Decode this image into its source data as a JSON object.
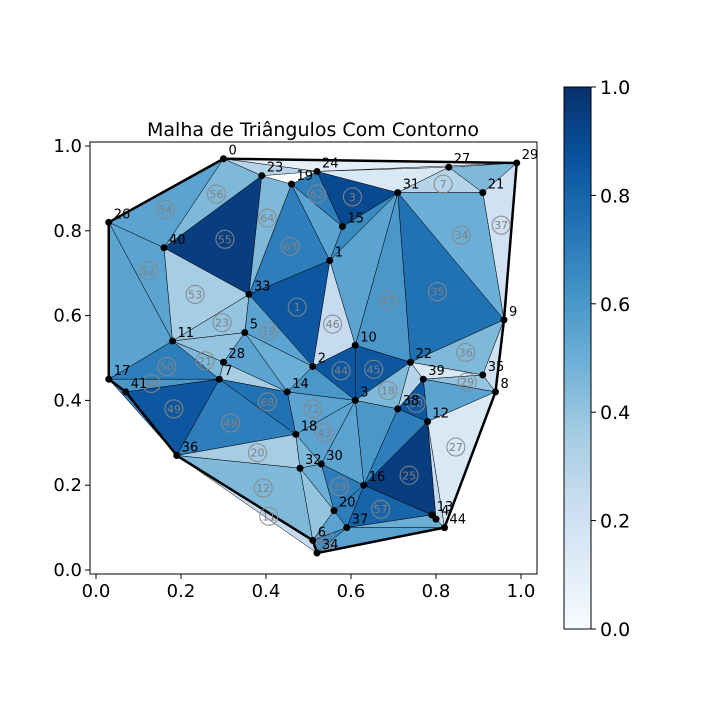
{
  "chart_data": {
    "type": "triangulation",
    "title": "Malha de Triângulos Com Contorno",
    "xlabel": "",
    "ylabel": "",
    "xlim": [
      -0.03,
      1.04
    ],
    "ylim": [
      -0.01,
      1.02
    ],
    "xticks": [
      "0.0",
      "0.2",
      "0.4",
      "0.6",
      "0.8",
      "1.0"
    ],
    "yticks": [
      "0.0",
      "0.2",
      "0.4",
      "0.6",
      "0.8",
      "1.0"
    ],
    "colorbar": {
      "min": 0.0,
      "max": 1.0,
      "ticks": [
        "0.0",
        "0.2",
        "0.4",
        "0.6",
        "0.8",
        "1.0"
      ],
      "colormap": "Blues"
    },
    "nodes": [
      {
        "id": "0",
        "x": 0.3,
        "y": 0.97
      },
      {
        "id": "1",
        "x": 0.55,
        "y": 0.73
      },
      {
        "id": "2",
        "x": 0.51,
        "y": 0.48
      },
      {
        "id": "3",
        "x": 0.61,
        "y": 0.4
      },
      {
        "id": "5",
        "x": 0.35,
        "y": 0.56
      },
      {
        "id": "6",
        "x": 0.51,
        "y": 0.07
      },
      {
        "id": "7",
        "x": 0.29,
        "y": 0.45
      },
      {
        "id": "8",
        "x": 0.94,
        "y": 0.42
      },
      {
        "id": "9",
        "x": 0.96,
        "y": 0.59
      },
      {
        "id": "10",
        "x": 0.61,
        "y": 0.53
      },
      {
        "id": "11",
        "x": 0.18,
        "y": 0.54
      },
      {
        "id": "12",
        "x": 0.78,
        "y": 0.35
      },
      {
        "id": "13",
        "x": 0.79,
        "y": 0.13
      },
      {
        "id": "14",
        "x": 0.45,
        "y": 0.42
      },
      {
        "id": "15",
        "x": 0.58,
        "y": 0.81
      },
      {
        "id": "16",
        "x": 0.63,
        "y": 0.2
      },
      {
        "id": "17",
        "x": 0.03,
        "y": 0.45
      },
      {
        "id": "18",
        "x": 0.47,
        "y": 0.32
      },
      {
        "id": "19",
        "x": 0.46,
        "y": 0.91
      },
      {
        "id": "20",
        "x": 0.56,
        "y": 0.14
      },
      {
        "id": "21",
        "x": 0.91,
        "y": 0.89
      },
      {
        "id": "22",
        "x": 0.74,
        "y": 0.49
      },
      {
        "id": "23",
        "x": 0.39,
        "y": 0.93
      },
      {
        "id": "24",
        "x": 0.52,
        "y": 0.94
      },
      {
        "id": "26",
        "x": 0.03,
        "y": 0.82
      },
      {
        "id": "27",
        "x": 0.83,
        "y": 0.95
      },
      {
        "id": "28",
        "x": 0.3,
        "y": 0.49
      },
      {
        "id": "29",
        "x": 0.99,
        "y": 0.96
      },
      {
        "id": "30",
        "x": 0.53,
        "y": 0.25
      },
      {
        "id": "31",
        "x": 0.71,
        "y": 0.89
      },
      {
        "id": "32",
        "x": 0.48,
        "y": 0.24
      },
      {
        "id": "33",
        "x": 0.36,
        "y": 0.65
      },
      {
        "id": "34",
        "x": 0.52,
        "y": 0.04
      },
      {
        "id": "35",
        "x": 0.91,
        "y": 0.46
      },
      {
        "id": "36",
        "x": 0.19,
        "y": 0.27
      },
      {
        "id": "37",
        "x": 0.59,
        "y": 0.1
      },
      {
        "id": "38",
        "x": 0.71,
        "y": 0.38
      },
      {
        "id": "39",
        "x": 0.77,
        "y": 0.45
      },
      {
        "id": "40",
        "x": 0.16,
        "y": 0.76
      },
      {
        "id": "41",
        "x": 0.07,
        "y": 0.42
      },
      {
        "id": "4",
        "x": 0.8,
        "y": 0.12
      },
      {
        "id": "44",
        "x": 0.82,
        "y": 0.1
      }
    ],
    "triangles": [
      {
        "label": "",
        "v": [
          "0",
          "26",
          "40"
        ],
        "value": 0.55
      },
      {
        "label": "",
        "v": [
          "0",
          "40",
          "23"
        ],
        "value": 0.45
      },
      {
        "label": "",
        "v": [
          "0",
          "23",
          "24"
        ],
        "value": 0.3
      },
      {
        "label": "",
        "v": [
          "0",
          "24",
          "29"
        ],
        "value": 0.1
      },
      {
        "label": "",
        "v": [
          "26",
          "40",
          "11"
        ],
        "value": 0.55
      },
      {
        "label": "",
        "v": [
          "26",
          "11",
          "17"
        ],
        "value": 0.55
      },
      {
        "label": "",
        "v": [
          "40",
          "11",
          "33"
        ],
        "value": 0.35
      },
      {
        "label": "",
        "v": [
          "40",
          "33",
          "23"
        ],
        "value": 0.95
      },
      {
        "label": "",
        "v": [
          "23",
          "33",
          "19"
        ],
        "value": 0.45
      },
      {
        "label": "",
        "v": [
          "19",
          "33",
          "1"
        ],
        "value": 0.7
      },
      {
        "label": "",
        "v": [
          "19",
          "1",
          "15"
        ],
        "value": 0.55
      },
      {
        "label": "",
        "v": [
          "19",
          "15",
          "24"
        ],
        "value": 0.7
      },
      {
        "label": "",
        "v": [
          "24",
          "15",
          "31"
        ],
        "value": 0.9
      },
      {
        "label": "",
        "v": [
          "24",
          "31",
          "27"
        ],
        "value": 0.15
      },
      {
        "label": "",
        "v": [
          "27",
          "31",
          "21"
        ],
        "value": 0.3
      },
      {
        "label": "",
        "v": [
          "27",
          "21",
          "29"
        ],
        "value": 0.45
      },
      {
        "label": "",
        "v": [
          "21",
          "29",
          "9"
        ],
        "value": 0.2
      },
      {
        "label": "",
        "v": [
          "21",
          "31",
          "9"
        ],
        "value": 0.5
      },
      {
        "label": "",
        "v": [
          "31",
          "9",
          "22"
        ],
        "value": 0.75
      },
      {
        "label": "",
        "v": [
          "31",
          "22",
          "10"
        ],
        "value": 0.6
      },
      {
        "label": "",
        "v": [
          "31",
          "10",
          "1"
        ],
        "value": 0.55
      },
      {
        "label": "",
        "v": [
          "15",
          "31",
          "1"
        ],
        "value": 0.65
      },
      {
        "label": "",
        "v": [
          "1",
          "10",
          "2"
        ],
        "value": 0.25
      },
      {
        "label": "",
        "v": [
          "1",
          "2",
          "33"
        ],
        "value": 0.85
      },
      {
        "label": "",
        "v": [
          "33",
          "2",
          "5"
        ],
        "value": 0.55
      },
      {
        "label": "",
        "v": [
          "33",
          "5",
          "11"
        ],
        "value": 0.4
      },
      {
        "label": "",
        "v": [
          "11",
          "5",
          "28"
        ],
        "value": 0.4
      },
      {
        "label": "",
        "v": [
          "11",
          "28",
          "7"
        ],
        "value": 0.45
      },
      {
        "label": "",
        "v": [
          "11",
          "7",
          "17"
        ],
        "value": 0.7
      },
      {
        "label": "",
        "v": [
          "17",
          "7",
          "41"
        ],
        "value": 0.6
      },
      {
        "label": "",
        "v": [
          "41",
          "7",
          "36"
        ],
        "value": 0.85
      },
      {
        "label": "",
        "v": [
          "41",
          "36",
          "17"
        ],
        "value": 0.7
      },
      {
        "label": "",
        "v": [
          "7",
          "28",
          "14"
        ],
        "value": 0.35
      },
      {
        "label": "",
        "v": [
          "28",
          "5",
          "14"
        ],
        "value": 0.55
      },
      {
        "label": "",
        "v": [
          "5",
          "2",
          "14"
        ],
        "value": 0.5
      },
      {
        "label": "",
        "v": [
          "7",
          "14",
          "18"
        ],
        "value": 0.75
      },
      {
        "label": "",
        "v": [
          "7",
          "18",
          "36"
        ],
        "value": 0.7
      },
      {
        "label": "",
        "v": [
          "36",
          "18",
          "32"
        ],
        "value": 0.35
      },
      {
        "label": "",
        "v": [
          "36",
          "32",
          "6"
        ],
        "value": 0.45
      },
      {
        "label": "",
        "v": [
          "36",
          "6",
          "34"
        ],
        "value": 0.25
      },
      {
        "label": "",
        "v": [
          "2",
          "10",
          "3"
        ],
        "value": 0.85
      },
      {
        "label": "",
        "v": [
          "2",
          "3",
          "14"
        ],
        "value": 0.6
      },
      {
        "label": "",
        "v": [
          "14",
          "3",
          "18"
        ],
        "value": 0.55
      },
      {
        "label": "",
        "v": [
          "10",
          "22",
          "3"
        ],
        "value": 0.85
      },
      {
        "label": "",
        "v": [
          "22",
          "38",
          "3"
        ],
        "value": 0.45
      },
      {
        "label": "",
        "v": [
          "22",
          "39",
          "38"
        ],
        "value": 0.3
      },
      {
        "label": "",
        "v": [
          "22",
          "9",
          "35"
        ],
        "value": 0.45
      },
      {
        "label": "",
        "v": [
          "22",
          "35",
          "39"
        ],
        "value": 0.15
      },
      {
        "label": "",
        "v": [
          "39",
          "35",
          "8"
        ],
        "value": 0.4
      },
      {
        "label": "",
        "v": [
          "39",
          "8",
          "12"
        ],
        "value": 0.55
      },
      {
        "label": "",
        "v": [
          "38",
          "39",
          "12"
        ],
        "value": 0.85
      },
      {
        "label": "",
        "v": [
          "35",
          "9",
          "8"
        ],
        "value": 0.2
      },
      {
        "label": "",
        "v": [
          "3",
          "38",
          "16"
        ],
        "value": 0.6
      },
      {
        "label": "",
        "v": [
          "38",
          "12",
          "16"
        ],
        "value": 0.7
      },
      {
        "label": "",
        "v": [
          "3",
          "16",
          "30"
        ],
        "value": 0.55
      },
      {
        "label": "",
        "v": [
          "3",
          "30",
          "18"
        ],
        "value": 0.55
      },
      {
        "label": "",
        "v": [
          "18",
          "30",
          "32"
        ],
        "value": 0.45
      },
      {
        "label": "",
        "v": [
          "12",
          "8",
          "44"
        ],
        "value": 0.15
      },
      {
        "label": "",
        "v": [
          "12",
          "44",
          "4"
        ],
        "value": 0.25
      },
      {
        "label": "",
        "v": [
          "12",
          "4",
          "16"
        ],
        "value": 0.95
      },
      {
        "label": "",
        "v": [
          "16",
          "4",
          "13"
        ],
        "value": 0.65
      },
      {
        "label": "",
        "v": [
          "16",
          "13",
          "37"
        ],
        "value": 0.8
      },
      {
        "label": "",
        "v": [
          "16",
          "37",
          "20"
        ],
        "value": 0.7
      },
      {
        "label": "",
        "v": [
          "16",
          "20",
          "30"
        ],
        "value": 0.7
      },
      {
        "label": "",
        "v": [
          "32",
          "30",
          "20"
        ],
        "value": 0.5
      },
      {
        "label": "",
        "v": [
          "32",
          "20",
          "6"
        ],
        "value": 0.4
      },
      {
        "label": "",
        "v": [
          "6",
          "20",
          "37"
        ],
        "value": 0.55
      },
      {
        "label": "",
        "v": [
          "6",
          "37",
          "34"
        ],
        "value": 0.65
      },
      {
        "label": "",
        "v": [
          "34",
          "37",
          "44"
        ],
        "value": 0.55
      },
      {
        "label": "",
        "v": [
          "37",
          "13",
          "44"
        ],
        "value": 0.5
      }
    ],
    "triangle_labels": [
      {
        "label": "56",
        "at": [
          "0",
          "40",
          "23"
        ]
      },
      {
        "label": "54",
        "at": [
          "0",
          "26",
          "40"
        ]
      },
      {
        "label": "55",
        "at": [
          "40",
          "33",
          "23"
        ]
      },
      {
        "label": "52",
        "at": [
          "26",
          "40",
          "11"
        ]
      },
      {
        "label": "53",
        "at": [
          "40",
          "11",
          "33"
        ]
      },
      {
        "label": "64",
        "at": [
          "23",
          "33",
          "19"
        ]
      },
      {
        "label": "63",
        "at": [
          "19",
          "33",
          "1"
        ]
      },
      {
        "label": "62",
        "at": [
          "19",
          "15",
          "24"
        ]
      },
      {
        "label": "3",
        "at": [
          "24",
          "15",
          "31"
        ]
      },
      {
        "label": "7",
        "at": [
          "27",
          "31",
          "21"
        ]
      },
      {
        "label": "34",
        "at": [
          "21",
          "31",
          "9"
        ]
      },
      {
        "label": "37",
        "at": [
          "21",
          "29",
          "9"
        ]
      },
      {
        "label": "35",
        "at": [
          "31",
          "9",
          "22"
        ]
      },
      {
        "label": "47",
        "at": [
          "31",
          "22",
          "10"
        ]
      },
      {
        "label": "1",
        "at": [
          "1",
          "2",
          "33"
        ]
      },
      {
        "label": "46",
        "at": [
          "1",
          "10",
          "2"
        ]
      },
      {
        "label": "23",
        "at": [
          "33",
          "5",
          "11"
        ]
      },
      {
        "label": "19",
        "at": [
          "33",
          "2",
          "5"
        ]
      },
      {
        "label": "50",
        "at": [
          "11",
          "7",
          "17"
        ]
      },
      {
        "label": "49",
        "at": [
          "41",
          "7",
          "36"
        ]
      },
      {
        "label": "48",
        "at": [
          "7",
          "18",
          "36"
        ]
      },
      {
        "label": "68",
        "at": [
          "7",
          "14",
          "18"
        ]
      },
      {
        "label": "72",
        "at": [
          "14",
          "3",
          "18"
        ]
      },
      {
        "label": "44",
        "at": [
          "2",
          "10",
          "3"
        ]
      },
      {
        "label": "45",
        "at": [
          "10",
          "22",
          "3"
        ]
      },
      {
        "label": "43",
        "at": [
          "3",
          "30",
          "18"
        ]
      },
      {
        "label": "20",
        "at": [
          "36",
          "18",
          "32"
        ]
      },
      {
        "label": "12",
        "at": [
          "36",
          "32",
          "6"
        ]
      },
      {
        "label": "11",
        "at": [
          "36",
          "6",
          "34"
        ]
      },
      {
        "label": "25",
        "at": [
          "12",
          "4",
          "16"
        ]
      },
      {
        "label": "27",
        "at": [
          "12",
          "8",
          "44"
        ]
      },
      {
        "label": "39",
        "at": [
          "16",
          "20",
          "30"
        ]
      },
      {
        "label": "57",
        "at": [
          "16",
          "13",
          "37"
        ]
      },
      {
        "label": "61",
        "at": [
          "6",
          "37",
          "34"
        ]
      },
      {
        "label": "30",
        "at": [
          "38",
          "39",
          "12"
        ]
      },
      {
        "label": "29",
        "at": [
          "39",
          "35",
          "8"
        ]
      },
      {
        "label": "36",
        "at": [
          "22",
          "9",
          "35"
        ]
      },
      {
        "label": "18",
        "at": [
          "22",
          "38",
          "3"
        ]
      },
      {
        "label": "40",
        "at": [
          "17",
          "7",
          "41"
        ]
      },
      {
        "label": "21",
        "at": [
          "11",
          "28",
          "7"
        ]
      }
    ]
  }
}
